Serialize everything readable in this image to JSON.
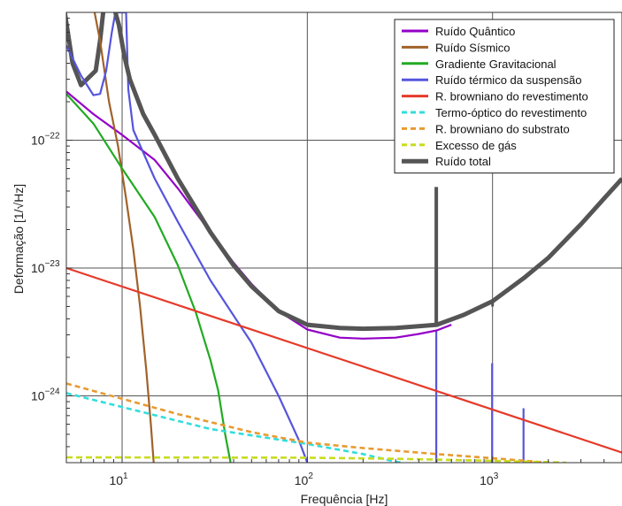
{
  "chart_data": {
    "type": "line",
    "title": "",
    "xlabel": "Frequência [Hz]",
    "ylabel": "Deformação [1/√Hz]",
    "xscale": "log",
    "yscale": "log",
    "xlim": [
      5,
      5000
    ],
    "ylim": [
      3e-25,
      1e-21
    ],
    "grid": true,
    "legend_position": "top-right",
    "x_ticks": [
      {
        "value": 10,
        "base": "10",
        "exp": "1"
      },
      {
        "value": 100,
        "base": "10",
        "exp": "2"
      },
      {
        "value": 1000,
        "base": "10",
        "exp": "3"
      }
    ],
    "y_ticks": [
      {
        "value": 1e-22,
        "base": "10",
        "exp": "−22"
      },
      {
        "value": 1e-23,
        "base": "10",
        "exp": "−23"
      },
      {
        "value": 1e-24,
        "base": "10",
        "exp": "−24"
      }
    ],
    "series": [
      {
        "name": "Ruído Quântico",
        "color": "#9400c8",
        "width": 2.2,
        "dash": "",
        "points": [
          [
            5,
            2.4e-22
          ],
          [
            7,
            1.6e-22
          ],
          [
            10,
            1.1e-22
          ],
          [
            15,
            7e-23
          ],
          [
            20,
            4.2e-23
          ],
          [
            30,
            1.9e-23
          ],
          [
            40,
            1.1e-23
          ],
          [
            50,
            7.5e-24
          ],
          [
            70,
            4.6e-24
          ],
          [
            100,
            3.3e-24
          ],
          [
            150,
            2.85e-24
          ],
          [
            200,
            2.8e-24
          ],
          [
            300,
            2.85e-24
          ],
          [
            400,
            3.05e-24
          ],
          [
            500,
            3.25e-24
          ],
          [
            600,
            3.6e-24
          ]
        ]
      },
      {
        "name": "Ruído Sísmico",
        "color": "#a0622a",
        "width": 2.2,
        "dash": "",
        "points": [
          [
            7.1,
            1e-21
          ],
          [
            7.6,
            6e-22
          ],
          [
            8.5,
            2e-22
          ],
          [
            9.5,
            9e-23
          ],
          [
            10.5,
            3.5e-23
          ],
          [
            11.5,
            1.4e-23
          ],
          [
            12.5,
            5e-24
          ],
          [
            13.5,
            1.6e-24
          ],
          [
            14.3,
            6e-25
          ],
          [
            14.8,
            3e-25
          ]
        ]
      },
      {
        "name": "Gradiente Gravitacional",
        "color": "#22aa22",
        "width": 2.2,
        "dash": "",
        "points": [
          [
            5,
            2.3e-22
          ],
          [
            7,
            1.35e-22
          ],
          [
            10,
            6e-23
          ],
          [
            15,
            2.5e-23
          ],
          [
            20,
            1.05e-23
          ],
          [
            25,
            4.5e-24
          ],
          [
            30,
            1.9e-24
          ],
          [
            33,
            1.1e-24
          ],
          [
            36,
            5e-25
          ],
          [
            38.5,
            3e-25
          ]
        ]
      },
      {
        "name": "Ruído térmico da suspensão",
        "color": "#5555dd",
        "width": 2.2,
        "dash": "",
        "points": [
          [
            5,
            5.5e-22
          ],
          [
            6,
            3.2e-22
          ],
          [
            7,
            2.25e-22
          ],
          [
            7.6,
            2.3e-22
          ],
          [
            8.2,
            3.5e-22
          ],
          [
            8.8,
            7e-22
          ],
          [
            9.2,
            1e-21
          ],
          [
            10.5,
            1e-21
          ],
          [
            10.8,
            2.5e-22
          ],
          [
            11.5,
            1.2e-22
          ],
          [
            15,
            5e-23
          ],
          [
            20,
            2.3e-23
          ],
          [
            30,
            8e-24
          ],
          [
            50,
            2.6e-24
          ],
          [
            70,
            1e-24
          ],
          [
            90,
            4.5e-25
          ],
          [
            100,
            3e-25
          ]
        ]
      },
      {
        "name": "R. browniano do revestimento",
        "color": "#e63a2a",
        "width": 2.2,
        "dash": "",
        "points": [
          [
            5,
            1e-23
          ],
          [
            5000,
            3.6e-25
          ]
        ]
      },
      {
        "name": "Termo-óptico do revestimento",
        "color": "#33dddd",
        "width": 2.6,
        "dash": "6,4",
        "points": [
          [
            5,
            1.05e-24
          ],
          [
            30,
            5.5e-25
          ],
          [
            100,
            4.2e-25
          ],
          [
            200,
            3.5e-25
          ],
          [
            300,
            3.05e-25
          ],
          [
            330,
            3e-25
          ]
        ]
      },
      {
        "name": "R. browniano do substrato",
        "color": "#e89a30",
        "width": 2.6,
        "dash": "6,4",
        "points": [
          [
            5,
            1.25e-24
          ],
          [
            20,
            7.2e-25
          ],
          [
            50,
            5.2e-25
          ],
          [
            100,
            4.3e-25
          ],
          [
            200,
            3.9e-25
          ],
          [
            500,
            3.5e-25
          ],
          [
            1000,
            3.25e-25
          ],
          [
            1500,
            3.1e-25
          ],
          [
            2000,
            3e-25
          ]
        ]
      },
      {
        "name": "Excesso de gás",
        "color": "#c8dc1e",
        "width": 2.6,
        "dash": "7,4",
        "points": [
          [
            5,
            3.3e-25
          ],
          [
            100,
            3.28e-25
          ],
          [
            300,
            3.22e-25
          ],
          [
            1000,
            3.1e-25
          ],
          [
            2500,
            3e-25
          ]
        ]
      },
      {
        "name": "Ruído total",
        "color": "#555555",
        "width": 5,
        "dash": "",
        "points": [
          [
            9.2,
            1e-21
          ],
          [
            9.6,
            8e-22
          ],
          [
            10.3,
            4.5e-22
          ],
          [
            11,
            3e-22
          ],
          [
            13,
            1.6e-22
          ],
          [
            15,
            1.1e-22
          ],
          [
            20,
            5e-23
          ],
          [
            30,
            1.9e-23
          ],
          [
            40,
            1.05e-23
          ],
          [
            50,
            7.2e-24
          ],
          [
            70,
            4.6e-24
          ],
          [
            100,
            3.6e-24
          ],
          [
            150,
            3.4e-24
          ],
          [
            200,
            3.35e-24
          ],
          [
            300,
            3.4e-24
          ],
          [
            400,
            3.5e-24
          ],
          [
            500,
            3.6e-24
          ],
          [
            700,
            4.3e-24
          ],
          [
            1000,
            5.5e-24
          ],
          [
            1500,
            8.5e-24
          ],
          [
            2000,
            1.2e-23
          ],
          [
            3000,
            2.2e-23
          ],
          [
            4000,
            3.5e-23
          ],
          [
            5000,
            5e-23
          ]
        ]
      }
    ],
    "decorations": [
      {
        "color": "#555555",
        "width": 5,
        "points": [
          [
            4.9,
            1e-21
          ],
          [
            5.4,
            4e-22
          ],
          [
            6,
            2.7e-22
          ],
          [
            7.2,
            3.5e-22
          ],
          [
            7.6,
            6e-22
          ],
          [
            7.9,
            1e-21
          ]
        ]
      },
      {
        "color": "#555555",
        "width": 4,
        "points": [
          [
            497,
            3.6e-24
          ],
          [
            497,
            4.3e-23
          ]
        ]
      },
      {
        "color": "#555555",
        "width": 3,
        "points": [
          [
            1000,
            5e-24
          ],
          [
            1000,
            5.6e-24
          ]
        ]
      },
      {
        "color": "#5555dd",
        "width": 2.2,
        "points": [
          [
            497,
            3e-25
          ],
          [
            497,
            3.2e-24
          ]
        ]
      },
      {
        "color": "#5555dd",
        "width": 2.2,
        "points": [
          [
            995,
            3e-25
          ],
          [
            995,
            1.8e-24
          ]
        ]
      },
      {
        "color": "#5555dd",
        "width": 2.2,
        "points": [
          [
            1470,
            3e-25
          ],
          [
            1470,
            8e-25
          ]
        ]
      }
    ]
  }
}
